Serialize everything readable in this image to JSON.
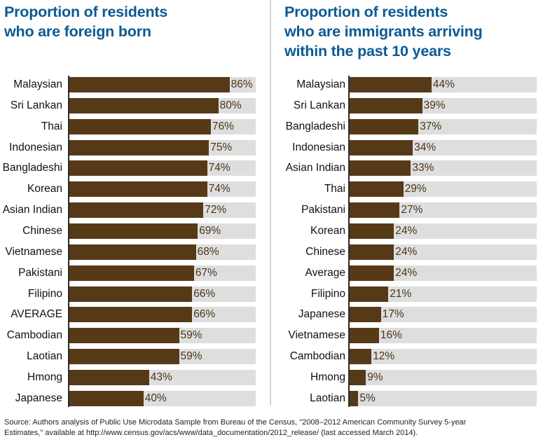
{
  "chart_data": [
    {
      "type": "bar",
      "orientation": "horizontal",
      "title": "Proportion of residents who are foreign born",
      "title_lines": [
        "Proportion of residents",
        "who are foreign born"
      ],
      "xlabel": "",
      "ylabel": "",
      "xlim": [
        0,
        100
      ],
      "value_suffix": "%",
      "grid": false,
      "categories": [
        "Malaysian",
        "Sri Lankan",
        "Thai",
        "Indonesian",
        "Bangladeshi",
        "Korean",
        "Asian Indian",
        "Chinese",
        "Vietnamese",
        "Pakistani",
        "Filipino",
        "AVERAGE",
        "Cambodian",
        "Laotian",
        "Hmong",
        "Japanese"
      ],
      "values": [
        86,
        80,
        76,
        75,
        74,
        74,
        72,
        69,
        68,
        67,
        66,
        66,
        59,
        59,
        43,
        40
      ]
    },
    {
      "type": "bar",
      "orientation": "horizontal",
      "title": "Proportion of residents who are immigrants arriving within the past 10 years",
      "title_lines": [
        "Proportion of residents",
        "who are immigrants arriving",
        "within the past 10 years"
      ],
      "xlabel": "",
      "ylabel": "",
      "xlim": [
        0,
        100
      ],
      "value_suffix": "%",
      "grid": false,
      "categories": [
        "Malaysian",
        "Sri Lankan",
        "Bangladeshi",
        "Indonesian",
        "Asian Indian",
        "Thai",
        "Pakistani",
        "Korean",
        "Chinese",
        "Average",
        "Filipino",
        "Japanese",
        "Vietnamese",
        "Cambodian",
        "Hmong",
        "Laotian"
      ],
      "values": [
        44,
        39,
        37,
        34,
        33,
        29,
        27,
        24,
        24,
        24,
        21,
        17,
        16,
        12,
        9,
        5
      ]
    }
  ],
  "colors": {
    "title": "#0b5a93",
    "bar": "#563a18",
    "track": "#dedede",
    "value_label": "#4a3418",
    "axis": "#2a2a2a"
  },
  "source": {
    "line1": "Source: Authors analysis of Public Use Microdata Sample from Bureau of the Census, \"2008–2012 American Community Survey 5-year",
    "line2": "Estimates,\" available at http://www.census.gov/acs/www/data_documentation/2012_release/ (last accessed March 2014)."
  }
}
